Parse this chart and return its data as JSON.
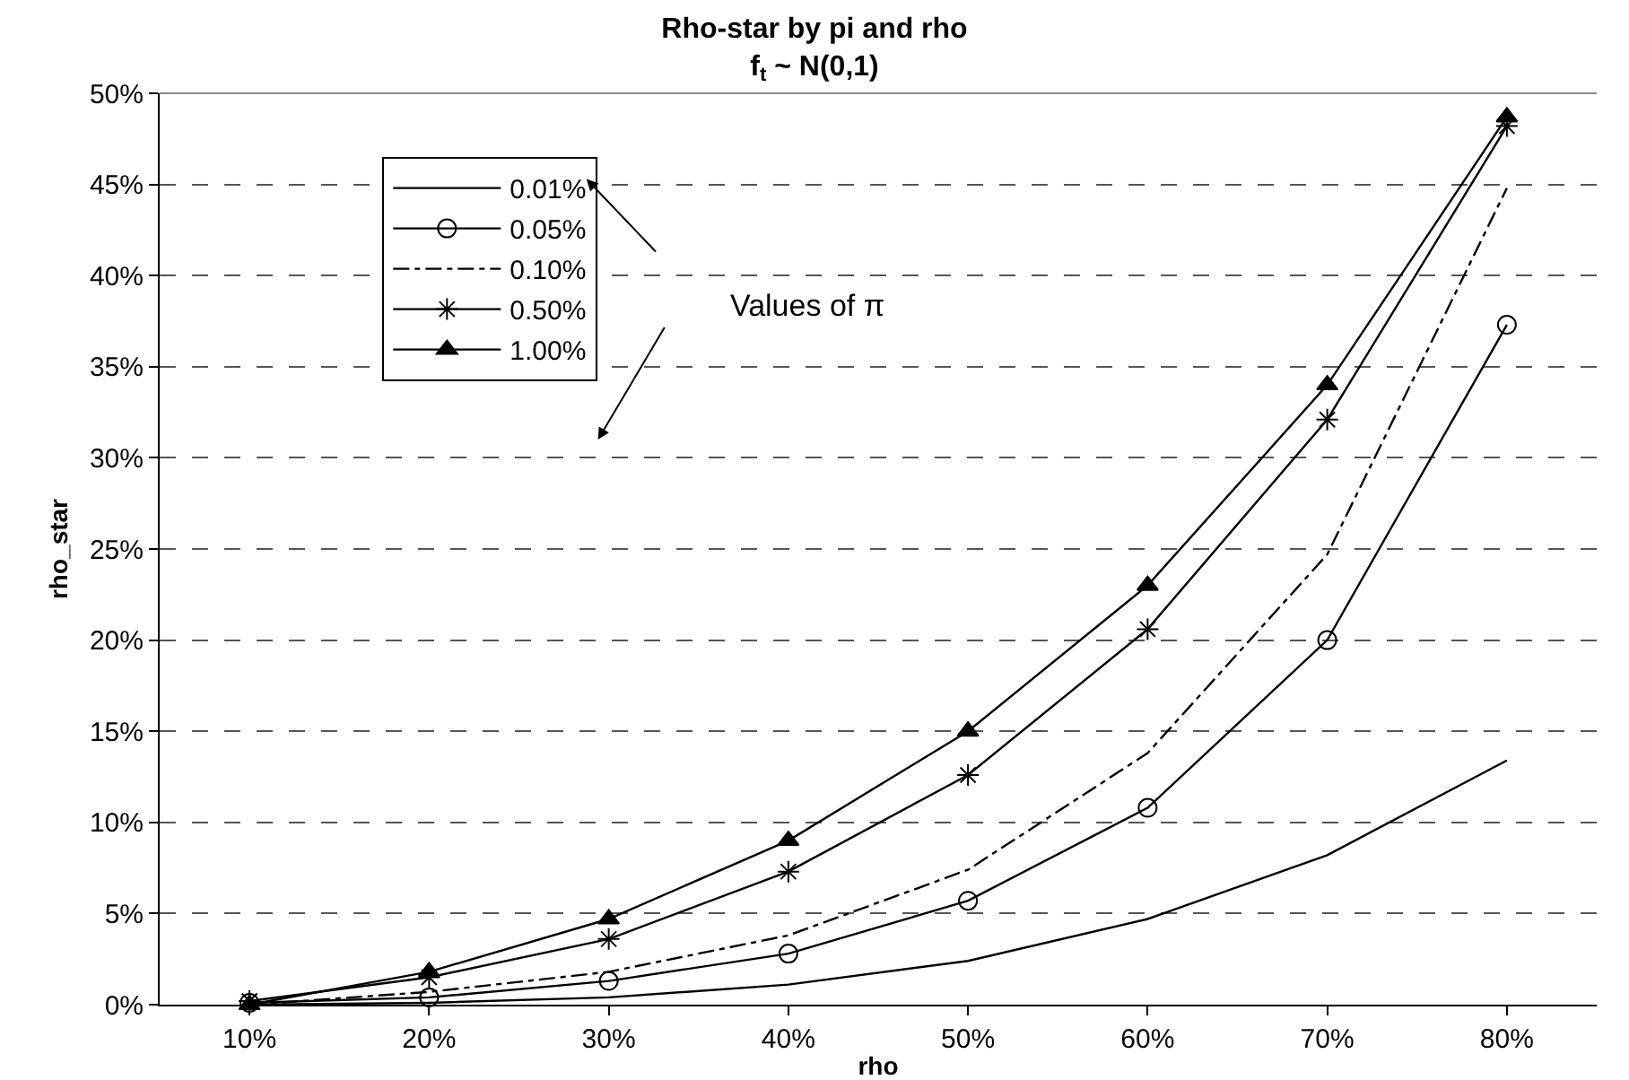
{
  "chart_data": {
    "type": "line",
    "title": "Rho-star by pi and rho",
    "subtitle": "f$_{t}$ ~ N(0,1)",
    "xlabel": "rho",
    "ylabel": "rho_star",
    "categories": [
      "10%",
      "20%",
      "30%",
      "40%",
      "50%",
      "60%",
      "70%",
      "80%"
    ],
    "series": [
      {
        "name": "0.01%",
        "color": "#000000",
        "marker": "none",
        "line_style": "solid",
        "values": [
          0,
          0.1,
          0.4,
          1.1,
          2.4,
          4.7,
          8.2,
          13.4
        ]
      },
      {
        "name": "0.05%",
        "color": "#000000",
        "marker": "circle",
        "line_style": "solid",
        "values": [
          0.1,
          0.4,
          1.3,
          2.8,
          5.7,
          10.8,
          20.0,
          37.3
        ]
      },
      {
        "name": "0.10%",
        "color": "#000000",
        "marker": "none",
        "line_style": "dashdot",
        "values": [
          0,
          0.7,
          1.8,
          3.8,
          7.4,
          13.8,
          24.7,
          44.8
        ]
      },
      {
        "name": "0.50%",
        "color": "#000000",
        "marker": "cross",
        "line_style": "solid",
        "values": [
          0.2,
          1.5,
          3.6,
          7.3,
          12.6,
          20.6,
          32.1,
          48.2
        ]
      },
      {
        "name": "1.00%",
        "color": "#000000",
        "marker": "triangle",
        "line_style": "solid",
        "values": [
          0,
          1.8,
          4.7,
          9.0,
          15.0,
          23.0,
          34.0,
          48.7
        ]
      }
    ],
    "ylim": [
      0,
      50
    ],
    "yticks": [
      {
        "value": 0,
        "label": "0%"
      },
      {
        "value": 5,
        "label": "5%"
      },
      {
        "value": 10,
        "label": "10%"
      },
      {
        "value": 15,
        "label": "15%"
      },
      {
        "value": 20,
        "label": "20%"
      },
      {
        "value": 25,
        "label": "25%"
      },
      {
        "value": 30,
        "label": "30%"
      },
      {
        "value": 35,
        "label": "35%"
      },
      {
        "value": 40,
        "label": "40%"
      },
      {
        "value": 45,
        "label": "45%"
      },
      {
        "value": 50,
        "label": "50%"
      }
    ],
    "grid": "y",
    "legend": "top left",
    "annotations": [
      "Values of π"
    ]
  }
}
